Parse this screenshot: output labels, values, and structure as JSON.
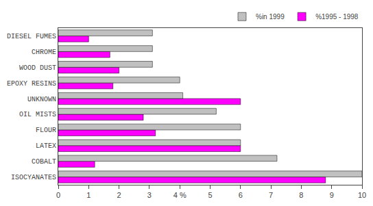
{
  "chart_data": {
    "type": "bar",
    "orientation": "horizontal",
    "categories": [
      "ISOCYANATES",
      "COBALT",
      "LATEX",
      "FLOUR",
      "OIL MISTS",
      "UNKNOWN",
      "EPOXY RESINS",
      "WOOD DUST",
      "CHROME",
      "DIESEL FUMES"
    ],
    "series": [
      {
        "name": "%in 1999",
        "color": "#c0c0c0",
        "values": [
          10.0,
          7.2,
          6.0,
          6.0,
          5.2,
          4.1,
          4.0,
          3.1,
          3.1,
          3.1
        ]
      },
      {
        "name": "%1995 - 1998",
        "color": "#ff00ff",
        "values": [
          8.8,
          1.2,
          6.0,
          3.2,
          2.8,
          6.0,
          1.8,
          2.0,
          1.7,
          1.0
        ]
      }
    ],
    "xlim": [
      0,
      10
    ],
    "xticks": [
      0,
      1,
      2,
      3,
      {
        "value": 4,
        "label": "4 %"
      },
      5,
      6,
      7,
      8,
      9,
      10
    ],
    "grid": false,
    "legend": "upper right"
  }
}
